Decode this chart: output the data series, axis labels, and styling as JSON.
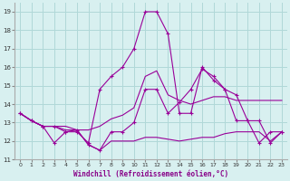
{
  "x_values": [
    0,
    1,
    2,
    3,
    4,
    5,
    6,
    7,
    8,
    9,
    10,
    11,
    12,
    13,
    14,
    15,
    16,
    17,
    18,
    19,
    20,
    21,
    22,
    23
  ],
  "line_spike": [
    13.5,
    13.1,
    12.8,
    12.8,
    12.5,
    12.5,
    11.9,
    14.8,
    15.5,
    16.0,
    17.0,
    19.0,
    19.0,
    17.8,
    13.5,
    13.5,
    16.0,
    15.3,
    14.8,
    13.1,
    13.1,
    11.9,
    12.5,
    12.5
  ],
  "line_broad": [
    13.5,
    13.1,
    12.8,
    12.8,
    12.8,
    12.6,
    12.6,
    12.8,
    13.2,
    13.4,
    13.8,
    15.5,
    15.8,
    14.5,
    14.2,
    14.0,
    14.2,
    14.4,
    14.4,
    14.2,
    14.2,
    14.2,
    14.2,
    14.2
  ],
  "line_mid": [
    13.5,
    13.1,
    12.8,
    11.9,
    12.5,
    12.6,
    11.8,
    11.5,
    12.5,
    12.5,
    13.0,
    14.8,
    14.8,
    13.5,
    14.1,
    14.8,
    15.9,
    15.5,
    14.8,
    14.5,
    13.1,
    13.1,
    11.9,
    12.5
  ],
  "line_flat": [
    13.5,
    13.1,
    12.8,
    12.8,
    12.6,
    12.6,
    11.8,
    11.5,
    12.0,
    12.0,
    12.0,
    12.2,
    12.2,
    12.1,
    12.0,
    12.1,
    12.2,
    12.2,
    12.4,
    12.5,
    12.5,
    12.5,
    12.0,
    12.5
  ],
  "line_color": "#990099",
  "bg_color": "#d8f0f0",
  "grid_color": "#b0d8d8",
  "xlabel": "Windchill (Refroidissement éolien,°C)",
  "ylim": [
    11,
    19.5
  ],
  "xlim": [
    -0.5,
    23.5
  ],
  "yticks": [
    11,
    12,
    13,
    14,
    15,
    16,
    17,
    18,
    19
  ],
  "xticks": [
    0,
    1,
    2,
    3,
    4,
    5,
    6,
    7,
    8,
    9,
    10,
    11,
    12,
    13,
    14,
    15,
    16,
    17,
    18,
    19,
    20,
    21,
    22,
    23
  ]
}
